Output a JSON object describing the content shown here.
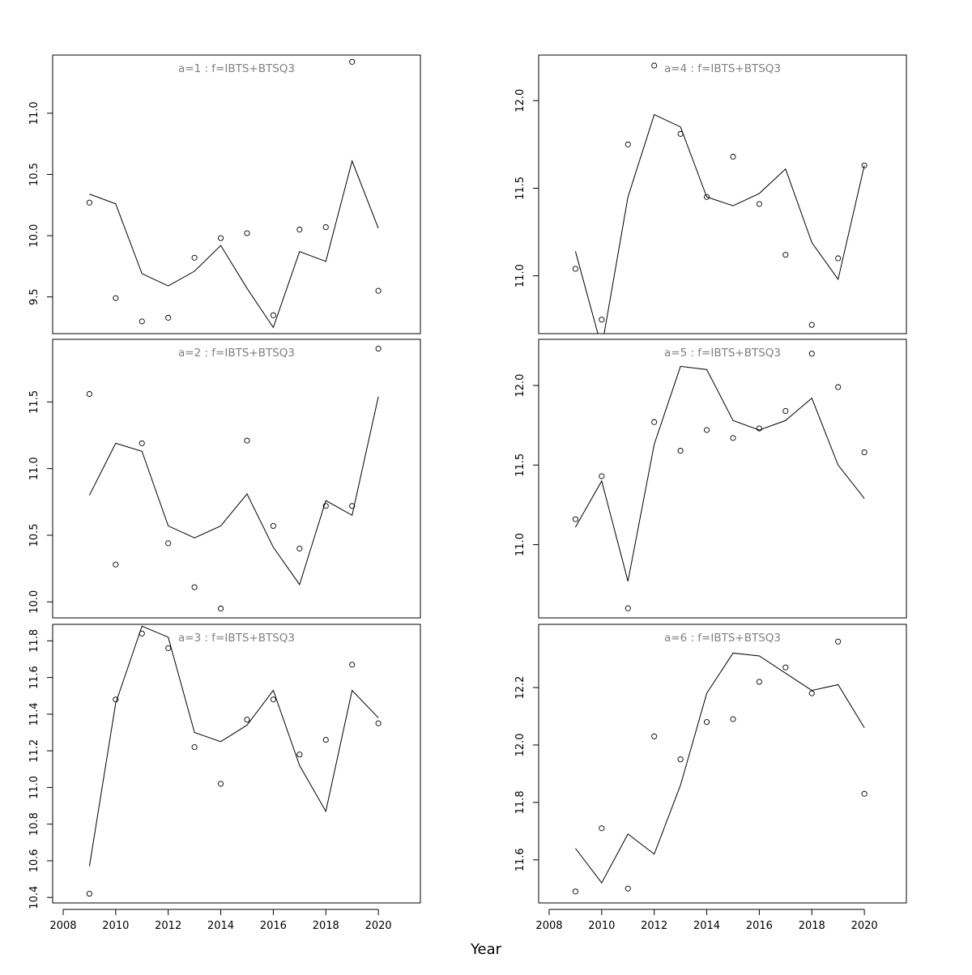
{
  "chart_data": {
    "type": "scatter",
    "xlabel": "Year",
    "x": [
      2009,
      2010,
      2011,
      2012,
      2013,
      2014,
      2015,
      2016,
      2017,
      2018,
      2019,
      2020
    ],
    "x_ticks": [
      2008,
      2010,
      2012,
      2014,
      2016,
      2018,
      2020
    ],
    "xlim": [
      2007.6,
      2021.6
    ],
    "panels": [
      {
        "title": "a=1  :  f=IBTS+BTSQ3",
        "ylim": [
          9.2,
          11.475
        ],
        "y_ticks": [
          9.5,
          10.0,
          10.5,
          11.0
        ],
        "y_tick_labels": [
          "9.5",
          "10.0",
          "10.5",
          "11.0"
        ],
        "observed": [
          10.27,
          9.49,
          9.3,
          9.33,
          9.82,
          9.98,
          10.02,
          9.35,
          10.05,
          10.07,
          11.42,
          9.55
        ],
        "fitted": [
          10.34,
          10.26,
          9.69,
          9.59,
          9.71,
          9.92,
          9.57,
          9.25,
          9.87,
          9.79,
          10.61,
          10.06
        ]
      },
      {
        "title": "a=2  :  f=IBTS+BTSQ3",
        "ylim": [
          9.88,
          11.97
        ],
        "y_ticks": [
          10.0,
          10.5,
          11.0,
          11.5
        ],
        "y_tick_labels": [
          "10.0",
          "10.5",
          "11.0",
          "11.5"
        ],
        "observed": [
          11.56,
          10.28,
          11.19,
          10.44,
          10.11,
          9.95,
          11.21,
          10.57,
          10.4,
          10.72,
          10.72,
          11.9
        ],
        "fitted": [
          10.8,
          11.19,
          11.13,
          10.57,
          10.48,
          10.57,
          10.81,
          10.41,
          10.13,
          10.76,
          10.65,
          11.54
        ]
      },
      {
        "title": "a=3  :  f=IBTS+BTSQ3",
        "ylim": [
          10.37,
          11.89
        ],
        "y_ticks": [
          10.4,
          10.6,
          10.8,
          11.0,
          11.2,
          11.4,
          11.6,
          11.8
        ],
        "y_tick_labels": [
          "10.4",
          "10.6",
          "10.8",
          "11.0",
          "11.2",
          "11.4",
          "11.6",
          "11.8"
        ],
        "observed": [
          10.42,
          11.48,
          11.84,
          11.76,
          11.22,
          11.02,
          11.37,
          11.48,
          11.18,
          11.26,
          11.67,
          11.35
        ],
        "fitted": [
          10.57,
          11.46,
          11.88,
          11.82,
          11.3,
          11.25,
          11.34,
          11.53,
          11.12,
          10.87,
          11.53,
          11.38
        ]
      },
      {
        "title": "a=4  :  f=IBTS+BTSQ3",
        "ylim": [
          10.67,
          12.26
        ],
        "y_ticks": [
          11.0,
          11.5,
          12.0
        ],
        "y_tick_labels": [
          "11.0",
          "11.5",
          "12.0"
        ],
        "observed": [
          11.04,
          10.75,
          11.75,
          12.2,
          11.81,
          11.45,
          11.68,
          11.41,
          11.12,
          10.72,
          11.1,
          11.63
        ],
        "fitted": [
          11.14,
          10.59,
          11.45,
          11.92,
          11.85,
          11.45,
          11.4,
          11.47,
          11.61,
          11.19,
          10.98,
          11.63
        ]
      },
      {
        "title": "a=5  :  f=IBTS+BTSQ3",
        "ylim": [
          10.54,
          12.29
        ],
        "y_ticks": [
          11.0,
          11.5,
          12.0
        ],
        "y_tick_labels": [
          "11.0",
          "11.5",
          "12.0"
        ],
        "observed": [
          11.16,
          11.43,
          10.6,
          11.77,
          11.59,
          11.72,
          11.67,
          11.73,
          11.84,
          12.2,
          11.99,
          11.58
        ],
        "fitted": [
          11.11,
          11.4,
          10.77,
          11.63,
          12.12,
          12.1,
          11.78,
          11.72,
          11.78,
          11.92,
          11.5,
          11.29
        ]
      },
      {
        "title": "a=6  :  f=IBTS+BTSQ3",
        "ylim": [
          11.45,
          12.42
        ],
        "y_ticks": [
          11.6,
          11.8,
          12.0,
          12.2
        ],
        "y_tick_labels": [
          "11.6",
          "11.8",
          "12.0",
          "12.2"
        ],
        "observed": [
          11.49,
          11.71,
          11.5,
          12.03,
          11.95,
          12.08,
          12.09,
          12.22,
          12.27,
          12.18,
          12.36,
          11.83
        ],
        "fitted": [
          11.64,
          11.52,
          11.69,
          11.62,
          11.86,
          12.18,
          12.32,
          12.31,
          12.25,
          12.19,
          12.21,
          12.06
        ]
      }
    ]
  }
}
